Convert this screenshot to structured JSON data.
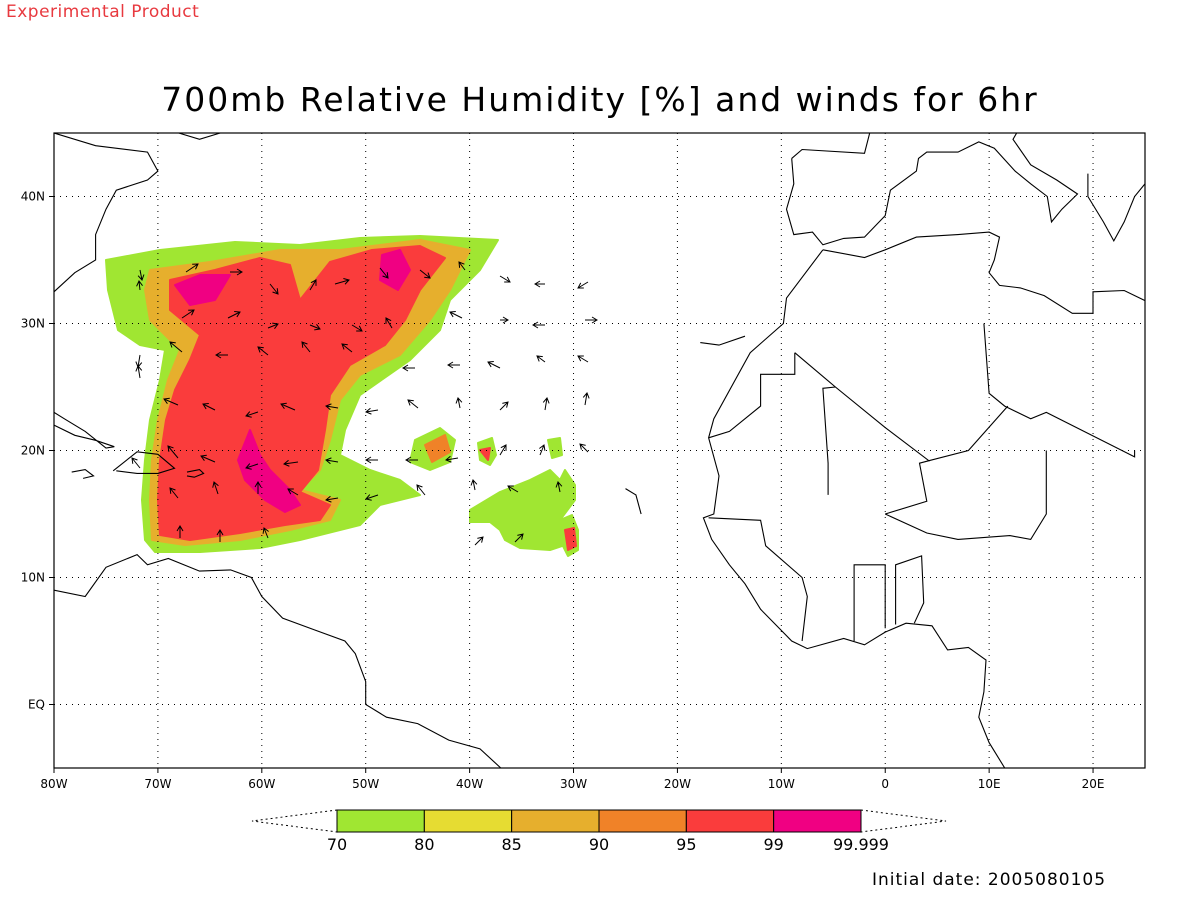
{
  "header": {
    "experimental_label": "Experimental Product"
  },
  "title": "700mb Relative Humidity [%] and winds for 6hr",
  "map": {
    "lon_range": [
      -80,
      25
    ],
    "lat_range": [
      -5,
      45
    ],
    "lon_ticks": [
      {
        "lon": -80,
        "label": "80W"
      },
      {
        "lon": -70,
        "label": "70W"
      },
      {
        "lon": -60,
        "label": "60W"
      },
      {
        "lon": -50,
        "label": "50W"
      },
      {
        "lon": -40,
        "label": "40W"
      },
      {
        "lon": -30,
        "label": "30W"
      },
      {
        "lon": -20,
        "label": "20W"
      },
      {
        "lon": -10,
        "label": "10W"
      },
      {
        "lon": 0,
        "label": "0"
      },
      {
        "lon": 10,
        "label": "10E"
      },
      {
        "lon": 20,
        "label": "20E"
      }
    ],
    "lat_ticks": [
      {
        "lat": 40,
        "label": "40N"
      },
      {
        "lat": 30,
        "label": "30N"
      },
      {
        "lat": 20,
        "label": "20N"
      },
      {
        "lat": 10,
        "label": "10N"
      },
      {
        "lat": 0,
        "label": "EQ"
      }
    ],
    "grid": true,
    "grid_style": "dotted"
  },
  "colorbar": {
    "labels": [
      "70",
      "80",
      "85",
      "90",
      "95",
      "99",
      "99.999"
    ],
    "colors": [
      "#a0e632",
      "#e6dc32",
      "#e6af2d",
      "#f08228",
      "#fa3c3c",
      "#f00082"
    ],
    "ends": "open-triangles"
  },
  "footer": {
    "initial_date": "Initial date: 2005080105"
  }
}
